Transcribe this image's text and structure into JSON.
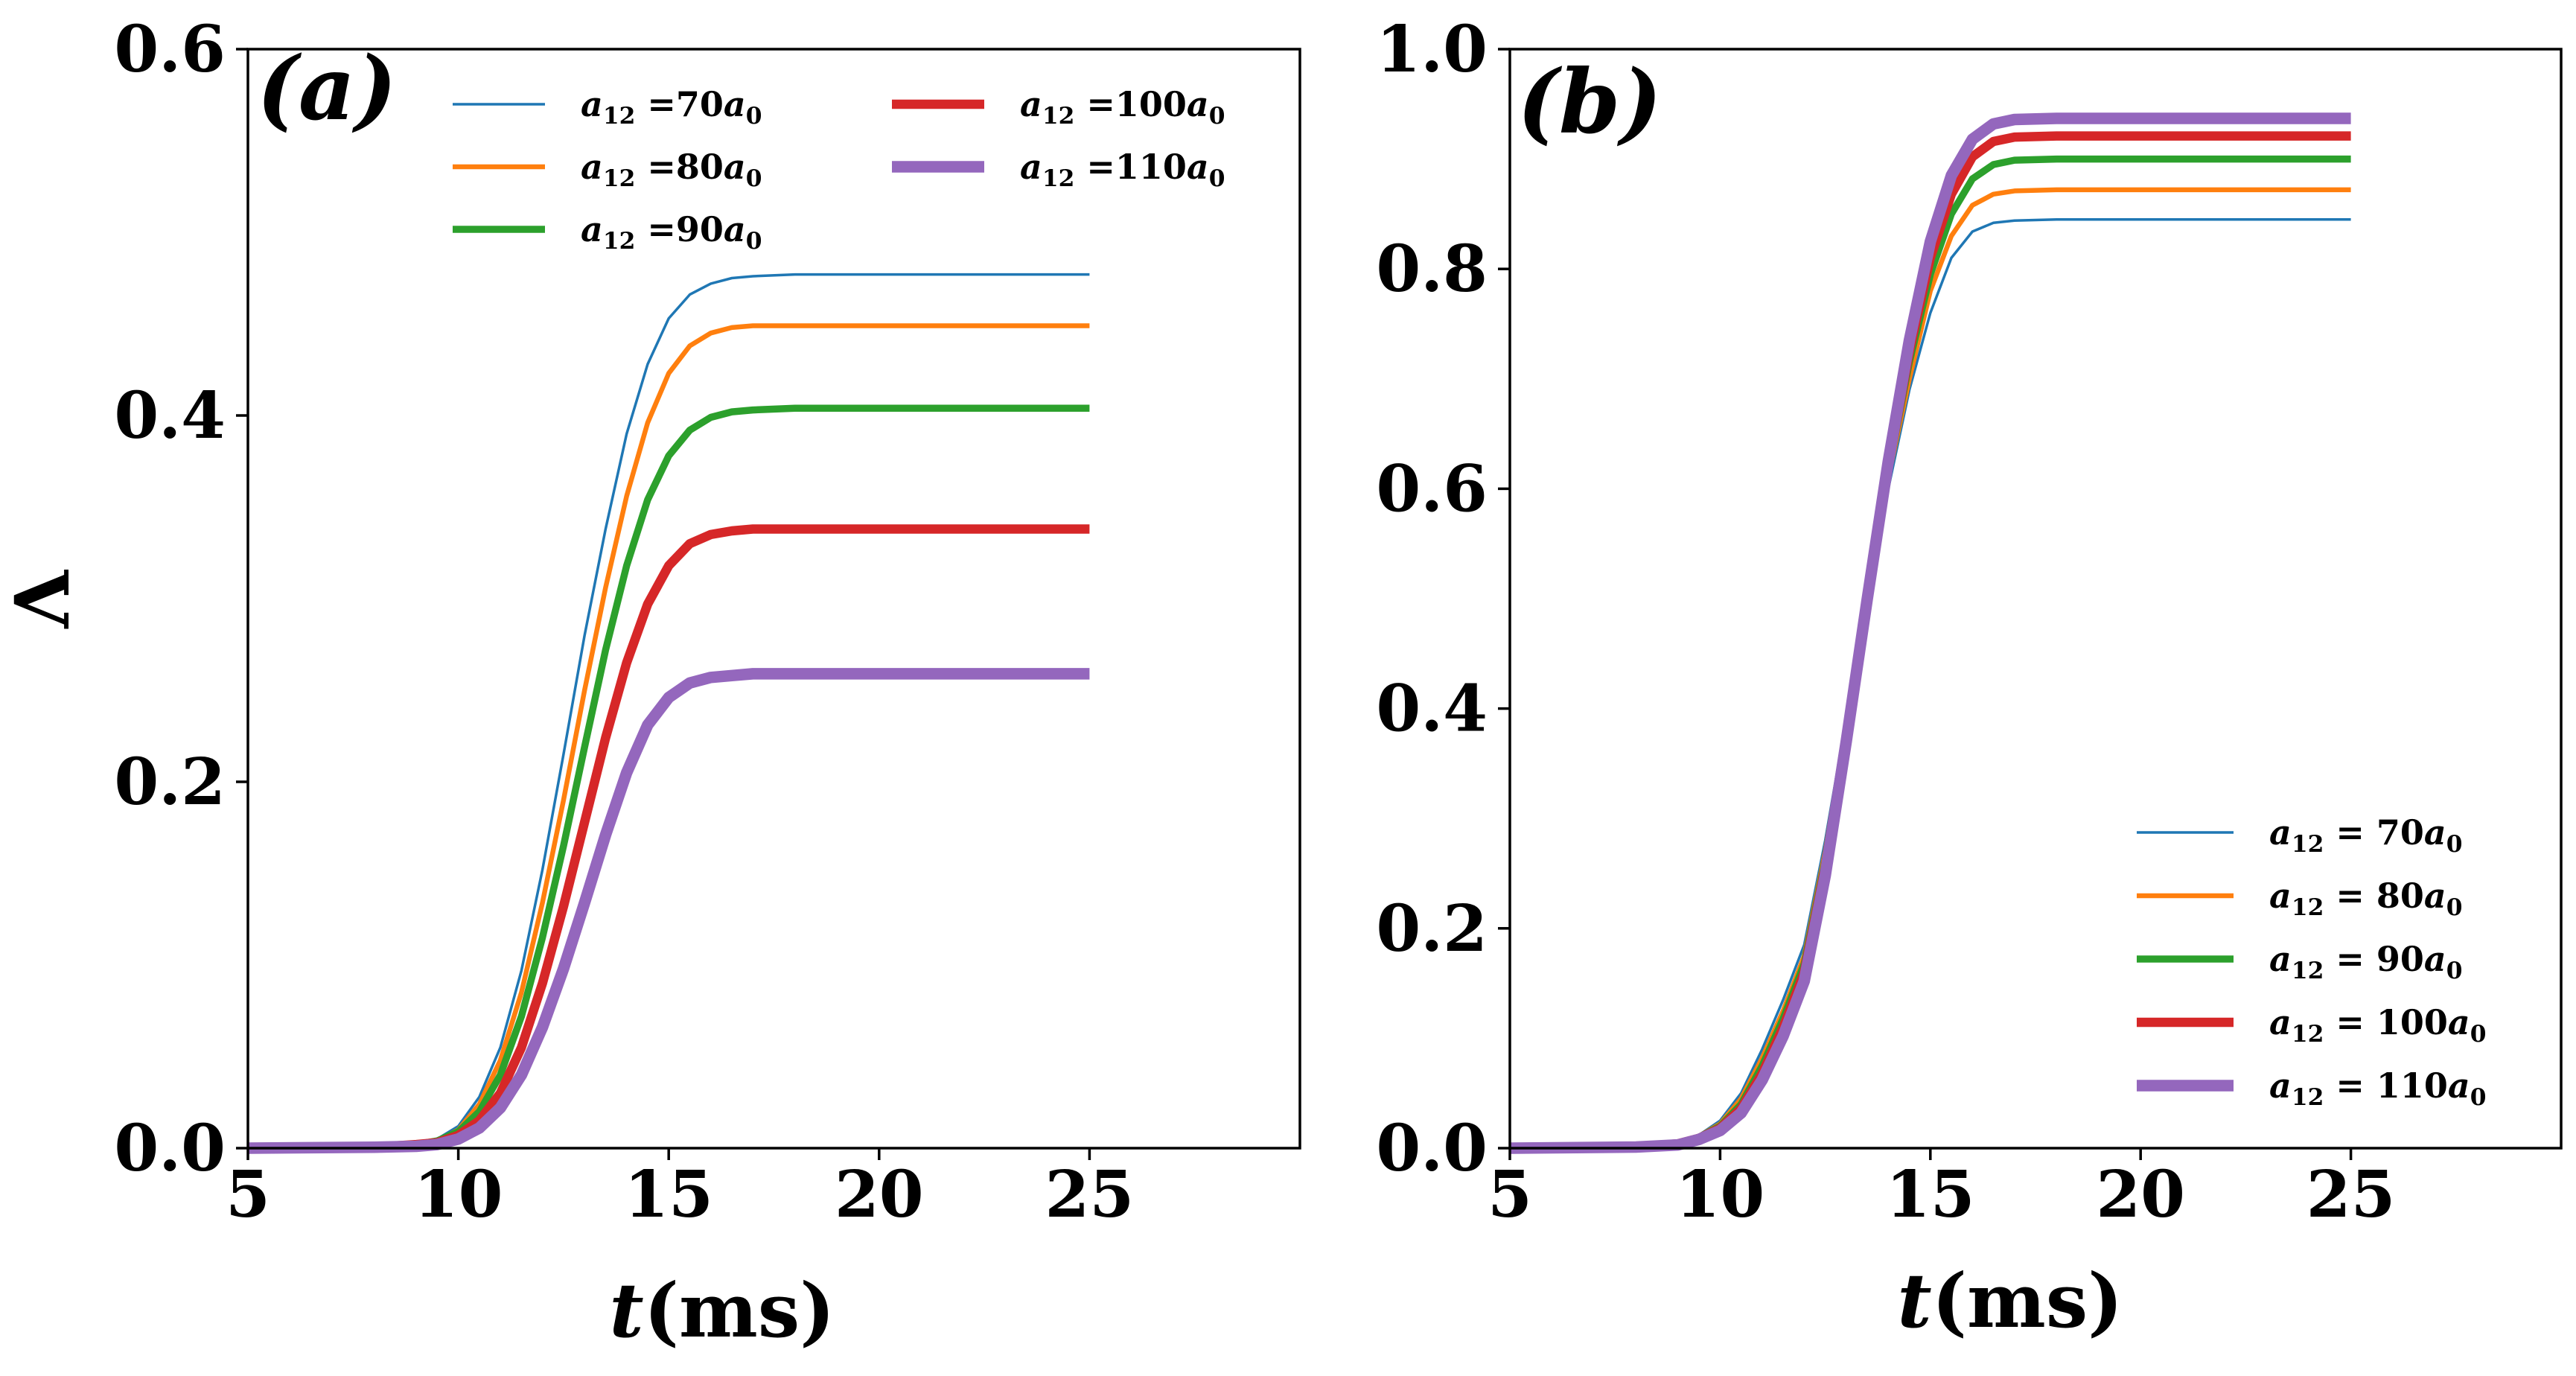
{
  "figure_title": "",
  "colors": {
    "series": [
      "#1f77b4",
      "#ff7f0e",
      "#2ca02c",
      "#d62728",
      "#9467bd"
    ],
    "axes": "#000000",
    "background": "#ffffff"
  },
  "chart_data": [
    {
      "type": "line",
      "panel_label": "(a)",
      "title": "",
      "xlabel": "t(ms)",
      "ylabel": "Λ",
      "xlim": [
        5,
        30
      ],
      "ylim": [
        0,
        0.6
      ],
      "xticks": [
        5,
        10,
        15,
        20,
        25
      ],
      "xtick_labels": [
        "5",
        "10",
        "15",
        "20",
        "25"
      ],
      "yticks": [
        0.0,
        0.2,
        0.4,
        0.6
      ],
      "ytick_labels": [
        "0.0",
        "0.2",
        "0.4",
        "0.6"
      ],
      "grid": false,
      "legend_position": "top-center",
      "legend_columns": 2,
      "series": [
        {
          "name": "a12 =70a0",
          "legend": {
            "base": "a",
            "sub": "12",
            "mid": " =70",
            "base2": "a",
            "sub2": "0"
          },
          "color": "#1f77b4",
          "weight": 1,
          "x": [
            5,
            8,
            9,
            9.5,
            10,
            10.5,
            11,
            11.5,
            12,
            12.5,
            13,
            13.5,
            14,
            14.5,
            15,
            15.5,
            16,
            16.5,
            17,
            18,
            20,
            22,
            25
          ],
          "y": [
            0.0,
            0.0005,
            0.002,
            0.005,
            0.012,
            0.028,
            0.055,
            0.097,
            0.152,
            0.215,
            0.28,
            0.338,
            0.39,
            0.428,
            0.453,
            0.466,
            0.472,
            0.475,
            0.476,
            0.477,
            0.477,
            0.477,
            0.477
          ]
        },
        {
          "name": "a12 =80a0",
          "legend": {
            "base": "a",
            "sub": "12",
            "mid": " =80",
            "base2": "a",
            "sub2": "0"
          },
          "color": "#ff7f0e",
          "weight": 2,
          "x": [
            5,
            8,
            9,
            9.5,
            10,
            10.5,
            11,
            11.5,
            12,
            12.5,
            13,
            13.5,
            14,
            14.5,
            15,
            15.5,
            16,
            16.5,
            17,
            18,
            20,
            22,
            25
          ],
          "y": [
            0.0,
            0.0005,
            0.002,
            0.004,
            0.01,
            0.024,
            0.048,
            0.085,
            0.134,
            0.19,
            0.25,
            0.306,
            0.356,
            0.396,
            0.423,
            0.438,
            0.445,
            0.448,
            0.449,
            0.449,
            0.449,
            0.449,
            0.449
          ]
        },
        {
          "name": "a12 =90a0",
          "legend": {
            "base": "a",
            "sub": "12",
            "mid": " =90",
            "base2": "a",
            "sub2": "0"
          },
          "color": "#2ca02c",
          "weight": 3,
          "x": [
            5,
            8,
            9,
            9.5,
            10,
            10.5,
            11,
            11.5,
            12,
            12.5,
            13,
            13.5,
            14,
            14.5,
            15,
            15.5,
            16,
            16.5,
            17,
            18,
            20,
            22,
            25
          ],
          "y": [
            0.0,
            0.0005,
            0.002,
            0.004,
            0.009,
            0.02,
            0.04,
            0.072,
            0.115,
            0.165,
            0.219,
            0.272,
            0.318,
            0.354,
            0.378,
            0.392,
            0.399,
            0.402,
            0.403,
            0.404,
            0.404,
            0.404,
            0.404
          ]
        },
        {
          "name": "a12 =100a0",
          "legend": {
            "base": "a",
            "sub": "12",
            "mid": " =100",
            "base2": "a",
            "sub2": "0"
          },
          "color": "#d62728",
          "weight": 4,
          "x": [
            5,
            8,
            9,
            9.5,
            10,
            10.5,
            11,
            11.5,
            12,
            12.5,
            13,
            13.5,
            14,
            14.5,
            15,
            15.5,
            16,
            16.5,
            17,
            18,
            20,
            22,
            25
          ],
          "y": [
            0.0,
            0.0005,
            0.002,
            0.003,
            0.007,
            0.015,
            0.03,
            0.055,
            0.09,
            0.132,
            0.178,
            0.224,
            0.265,
            0.297,
            0.318,
            0.33,
            0.335,
            0.337,
            0.338,
            0.338,
            0.338,
            0.338,
            0.338
          ]
        },
        {
          "name": "a12 =110a0",
          "legend": {
            "base": "a",
            "sub": "12",
            "mid": " =110",
            "base2": "a",
            "sub2": "0"
          },
          "color": "#9467bd",
          "weight": 5,
          "x": [
            5,
            8,
            9,
            9.5,
            10,
            10.5,
            11,
            11.5,
            12,
            12.5,
            13,
            13.5,
            14,
            14.5,
            15,
            15.5,
            16,
            16.5,
            17,
            18,
            20,
            22,
            25
          ],
          "y": [
            0.0,
            0.0005,
            0.001,
            0.002,
            0.005,
            0.011,
            0.022,
            0.04,
            0.066,
            0.098,
            0.134,
            0.171,
            0.205,
            0.231,
            0.246,
            0.254,
            0.257,
            0.258,
            0.259,
            0.259,
            0.259,
            0.259,
            0.259
          ]
        }
      ]
    },
    {
      "type": "line",
      "panel_label": "(b)",
      "title": "",
      "xlabel": "t(ms)",
      "ylabel": "",
      "xlim": [
        5,
        30
      ],
      "ylim": [
        0,
        1.0
      ],
      "xticks": [
        5,
        10,
        15,
        20,
        25
      ],
      "xtick_labels": [
        "5",
        "10",
        "15",
        "20",
        "25"
      ],
      "yticks": [
        0.0,
        0.2,
        0.4,
        0.6,
        0.8,
        1.0
      ],
      "ytick_labels": [
        "0.0",
        "0.2",
        "0.4",
        "0.6",
        "0.8",
        "1.0"
      ],
      "grid": false,
      "legend_position": "bottom-right",
      "legend_columns": 1,
      "series": [
        {
          "name": "a12 = 70a0",
          "legend": {
            "base": "a",
            "sub": "12",
            "mid": " = 70",
            "base2": "a",
            "sub2": "0"
          },
          "color": "#1f77b4",
          "weight": 1,
          "x": [
            5,
            8,
            9,
            9.5,
            10,
            10.5,
            11,
            11.5,
            12,
            12.5,
            13,
            13.5,
            14,
            14.5,
            15,
            15.5,
            16,
            16.5,
            17,
            18,
            20,
            22,
            25
          ],
          "y": [
            0.0,
            0.001,
            0.006,
            0.012,
            0.025,
            0.05,
            0.09,
            0.135,
            0.185,
            0.28,
            0.39,
            0.5,
            0.6,
            0.69,
            0.76,
            0.81,
            0.834,
            0.842,
            0.844,
            0.845,
            0.845,
            0.845,
            0.845
          ]
        },
        {
          "name": "a12 = 80a0",
          "legend": {
            "base": "a",
            "sub": "12",
            "mid": " = 80",
            "base2": "a",
            "sub2": "0"
          },
          "color": "#ff7f0e",
          "weight": 2,
          "x": [
            5,
            8,
            9,
            9.5,
            10,
            10.5,
            11,
            11.5,
            12,
            12.5,
            13,
            13.5,
            14,
            14.5,
            15,
            15.5,
            16,
            16.5,
            17,
            18,
            20,
            22,
            25
          ],
          "y": [
            0.0,
            0.001,
            0.005,
            0.011,
            0.022,
            0.045,
            0.082,
            0.125,
            0.175,
            0.27,
            0.385,
            0.5,
            0.61,
            0.7,
            0.78,
            0.83,
            0.858,
            0.868,
            0.871,
            0.872,
            0.872,
            0.872,
            0.872
          ]
        },
        {
          "name": "a12 = 90a0",
          "legend": {
            "base": "a",
            "sub": "12",
            "mid": " = 90",
            "base2": "a",
            "sub2": "0"
          },
          "color": "#2ca02c",
          "weight": 3,
          "x": [
            5,
            8,
            9,
            9.5,
            10,
            10.5,
            11,
            11.5,
            12,
            12.5,
            13,
            13.5,
            14,
            14.5,
            15,
            15.5,
            16,
            16.5,
            17,
            18,
            20,
            22,
            25
          ],
          "y": [
            0.0,
            0.001,
            0.004,
            0.01,
            0.02,
            0.04,
            0.075,
            0.118,
            0.168,
            0.262,
            0.38,
            0.5,
            0.615,
            0.715,
            0.795,
            0.85,
            0.882,
            0.895,
            0.899,
            0.9,
            0.9,
            0.9,
            0.9
          ]
        },
        {
          "name": "a12 = 100a0",
          "legend": {
            "base": "a",
            "sub": "12",
            "mid": " = 100",
            "base2": "a",
            "sub2": "0"
          },
          "color": "#d62728",
          "weight": 4,
          "x": [
            5,
            8,
            9,
            9.5,
            10,
            10.5,
            11,
            11.5,
            12,
            12.5,
            13,
            13.5,
            14,
            14.5,
            15,
            15.5,
            16,
            16.5,
            17,
            18,
            20,
            22,
            25
          ],
          "y": [
            0.0,
            0.001,
            0.004,
            0.009,
            0.018,
            0.036,
            0.068,
            0.11,
            0.16,
            0.255,
            0.375,
            0.5,
            0.62,
            0.725,
            0.81,
            0.868,
            0.902,
            0.916,
            0.92,
            0.921,
            0.921,
            0.921,
            0.921
          ]
        },
        {
          "name": "a12 = 110a0",
          "legend": {
            "base": "a",
            "sub": "12",
            "mid": " = 110",
            "base2": "a",
            "sub2": "0"
          },
          "color": "#9467bd",
          "weight": 5,
          "x": [
            5,
            8,
            9,
            9.5,
            10,
            10.5,
            11,
            11.5,
            12,
            12.5,
            13,
            13.5,
            14,
            14.5,
            15,
            15.5,
            16,
            16.5,
            17,
            18,
            20,
            22,
            25
          ],
          "y": [
            0.0,
            0.001,
            0.003,
            0.008,
            0.016,
            0.032,
            0.062,
            0.102,
            0.152,
            0.248,
            0.37,
            0.5,
            0.625,
            0.735,
            0.825,
            0.885,
            0.918,
            0.932,
            0.936,
            0.937,
            0.937,
            0.937,
            0.937
          ]
        }
      ]
    }
  ]
}
